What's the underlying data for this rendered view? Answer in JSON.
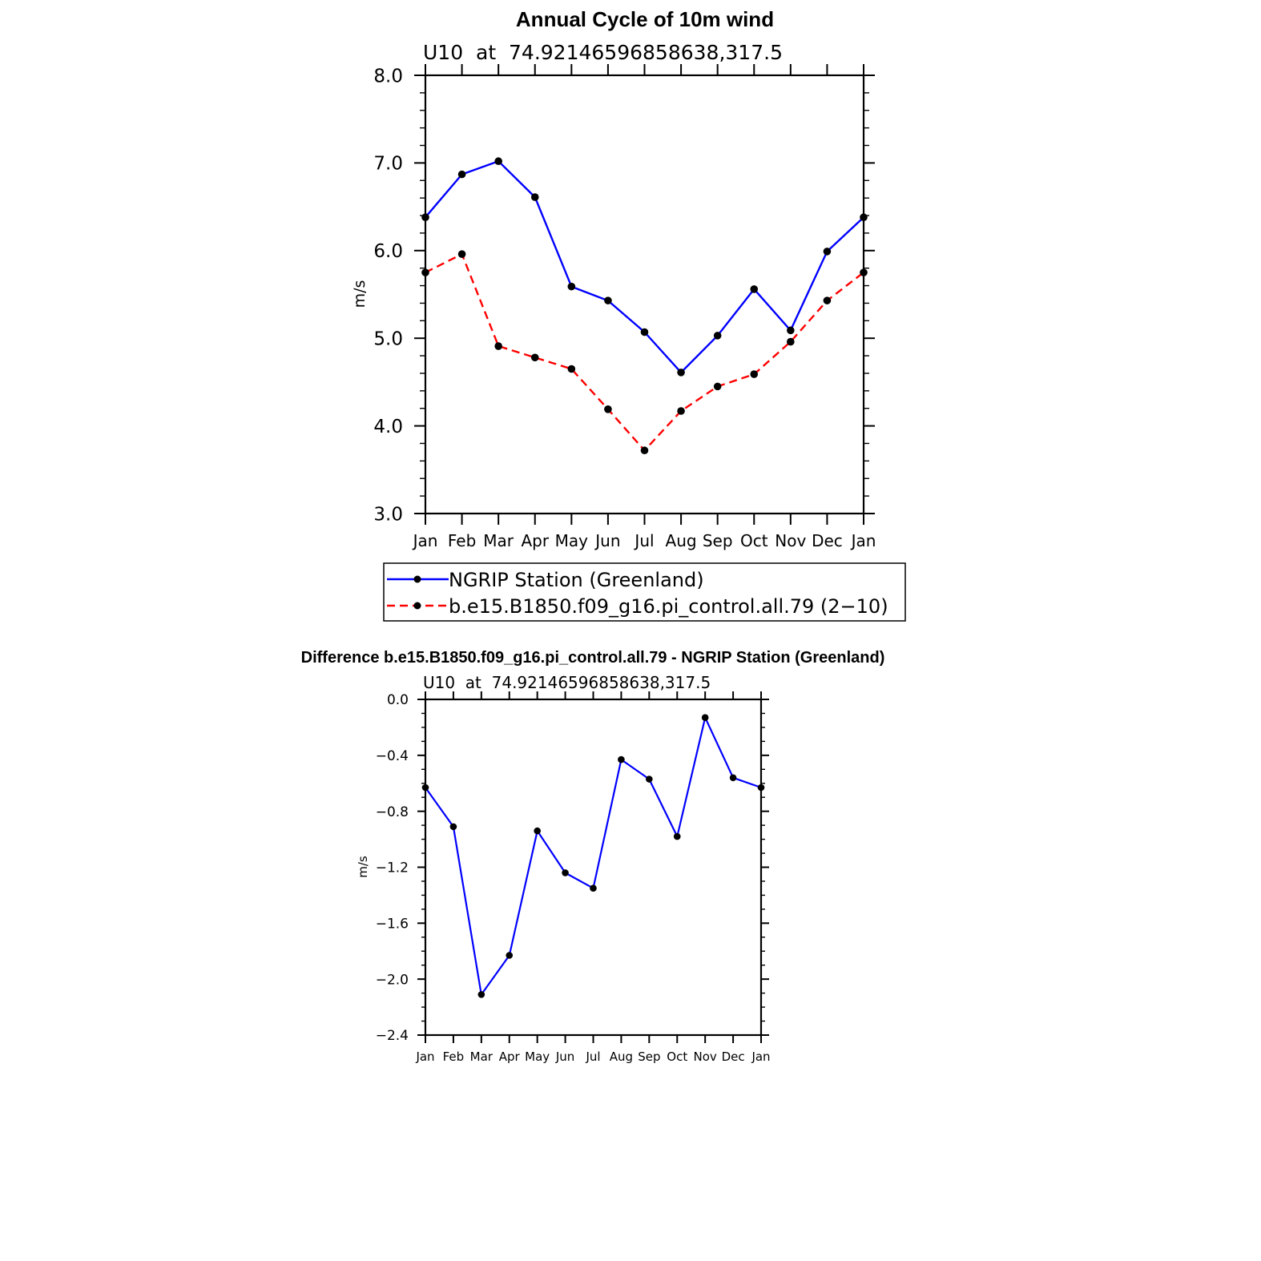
{
  "chart_data": [
    {
      "type": "line",
      "title": "Annual Cycle of 10m wind",
      "subtitle": "U10  at  74.92146596858638,317.5",
      "xlabel": "",
      "ylabel": "m/s",
      "categories": [
        "Jan",
        "Feb",
        "Mar",
        "Apr",
        "May",
        "Jun",
        "Jul",
        "Aug",
        "Sep",
        "Oct",
        "Nov",
        "Dec",
        "Jan"
      ],
      "ylim": [
        3.0,
        8.0
      ],
      "yticks": [
        "3.0",
        "4.0",
        "5.0",
        "6.0",
        "7.0",
        "8.0"
      ],
      "grid": false,
      "legend_position": "bottom",
      "series": [
        {
          "name": "NGRIP Station (Greenland)",
          "color": "#0000ff",
          "dash": "solid",
          "values": [
            6.38,
            6.87,
            7.02,
            6.61,
            5.59,
            5.43,
            5.07,
            4.61,
            5.03,
            5.56,
            5.09,
            5.99,
            6.38
          ]
        },
        {
          "name": "b.e15.B1850.f09_g16.pi_control.all.79 (2−10)",
          "color": "#ff0000",
          "dash": "dashed",
          "values": [
            5.75,
            5.96,
            4.91,
            4.78,
            4.65,
            4.19,
            3.72,
            4.17,
            4.45,
            4.59,
            4.96,
            5.43,
            5.75
          ]
        }
      ]
    },
    {
      "type": "line",
      "title": "Difference b.e15.B1850.f09_g16.pi_control.all.79 - NGRIP Station (Greenland)",
      "subtitle": "U10  at  74.92146596858638,317.5",
      "xlabel": "",
      "ylabel": "m/s",
      "categories": [
        "Jan",
        "Feb",
        "Mar",
        "Apr",
        "May",
        "Jun",
        "Jul",
        "Aug",
        "Sep",
        "Oct",
        "Nov",
        "Dec",
        "Jan"
      ],
      "ylim": [
        -2.4,
        0.0
      ],
      "yticks": [
        "−2.4",
        "−2.0",
        "−1.6",
        "−1.2",
        "−0.8",
        "−0.4",
        "0.0"
      ],
      "grid": false,
      "series": [
        {
          "name": "",
          "color": "#0000ff",
          "dash": "solid",
          "values": [
            -0.63,
            -0.91,
            -2.11,
            -1.83,
            -0.94,
            -1.24,
            -1.35,
            -0.43,
            -0.57,
            -0.98,
            -0.13,
            -0.56,
            -0.63
          ]
        }
      ]
    }
  ]
}
